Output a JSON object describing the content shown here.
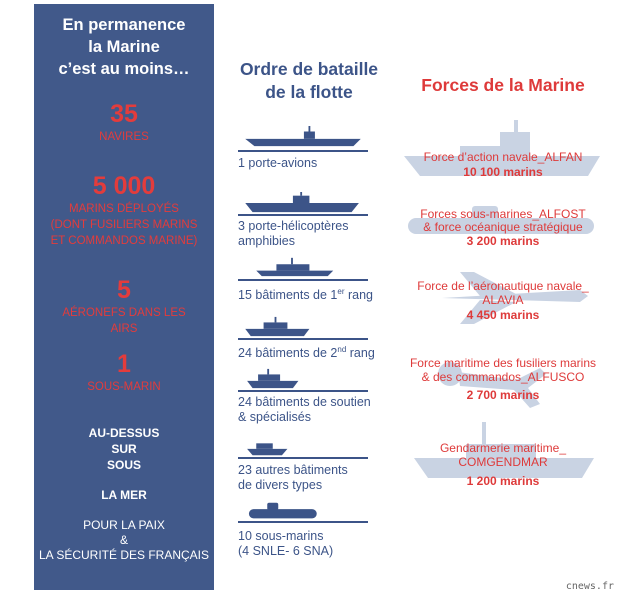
{
  "left_panel": {
    "heading": [
      "En permanence",
      "la Marine",
      "c’est au moins…"
    ],
    "stats": [
      {
        "value": "35",
        "label": [
          "NAVIRES"
        ]
      },
      {
        "value": "5 000",
        "label": [
          "MARINS DÉPLOYÉS",
          "(DONT FUSILIERS MARINS",
          "ET COMMANDOS MARINE)"
        ]
      },
      {
        "value": "5",
        "label": [
          "AÉRONEFS DANS LES",
          "AIRS"
        ]
      },
      {
        "value": "1",
        "label": [
          "SOUS-MARIN"
        ]
      }
    ],
    "position_words": [
      "AU-DESSUS",
      "SUR",
      "SOUS"
    ],
    "sea": "LA MER",
    "purpose": [
      "POUR LA PAIX",
      "&",
      "LA SÉCURITÉ DES FRANÇAIS"
    ]
  },
  "fleet": {
    "title": [
      "Ordre de bataille",
      "de la flotte"
    ],
    "items": [
      {
        "lines": [
          "1 porte-avions"
        ],
        "icon": "aircraft-carrier-icon"
      },
      {
        "lines": [
          "3 porte-hélicoptères",
          "amphibies"
        ],
        "icon": "helicopter-carrier-icon"
      },
      {
        "prefix": "15 bâtiments de 1",
        "sup": "er",
        "suffix": " rang",
        "icon": "frigate-icon"
      },
      {
        "prefix": "24 bâtiments de 2",
        "sup": "nd",
        "suffix": " rang",
        "icon": "patrol-ship-icon"
      },
      {
        "lines": [
          "24 bâtiments de soutien",
          "& spécialisés"
        ],
        "icon": "support-ship-icon"
      },
      {
        "lines": [
          "23 autres bâtiments",
          "de divers types"
        ],
        "icon": "small-ship-icon"
      },
      {
        "lines": [
          "10 sous-marins",
          "(4 SNLE- 6 SNA)"
        ],
        "icon": "submarine-icon"
      }
    ]
  },
  "forces": {
    "title": "Forces de la Marine",
    "items": [
      {
        "name": [
          "Force d’action navale_ALFAN"
        ],
        "count": "10 100 marins",
        "icon": "warship-silhouette-icon"
      },
      {
        "name": [
          "Forces sous-marines_ALFOST",
          "& force océanique stratégique"
        ],
        "count": "3 200 marins",
        "icon": "submarine-silhouette-icon"
      },
      {
        "name": [
          "Force de l’aéronautique navale_",
          "ALAVIA"
        ],
        "count": "4 450 marins",
        "icon": "jet-silhouette-icon"
      },
      {
        "name": [
          "Force maritime des fusiliers marins",
          "& des commandos_ALFUSCO"
        ],
        "count": "2 700 marins",
        "icon": "diver-silhouette-icon"
      },
      {
        "name": [
          "Gendarmerie maritime_",
          "COMGENDMAR"
        ],
        "count": "1 200 marins",
        "icon": "patrol-boat-silhouette-icon"
      }
    ]
  },
  "credit": "cnews.fr",
  "colors": {
    "panel": "#41598a",
    "red": "#de3a3a",
    "navy": "#3c5488",
    "silhouette": "#c9d3e3"
  }
}
